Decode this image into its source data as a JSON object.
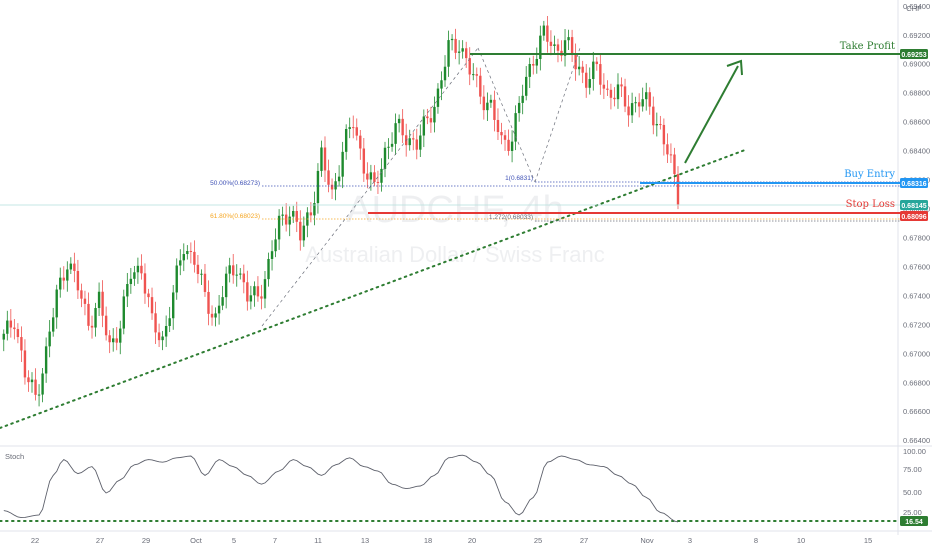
{
  "instrument": {
    "watermark": "AUDCHF, 4h",
    "description": "Australian Dollar / Swiss Franc",
    "currency": "CHF"
  },
  "colors": {
    "up": "#26a69a",
    "up_candle": "#1e8a2e",
    "down": "#ef5350",
    "take_profit": "#2e7d32",
    "buy_entry": "#2196f3",
    "stop_loss": "#e53935",
    "trendline": "#2e7d32",
    "fib_orange": "#f5a623",
    "fib_blue": "#3f51b5"
  },
  "annotations": {
    "take_profit": {
      "label": "Take Profit",
      "price": "0.69253"
    },
    "buy_entry": {
      "label": "Buy Entry",
      "price": "0.68316"
    },
    "stop_loss": {
      "label": "Stop Loss",
      "price": "0.68096"
    },
    "last_price": "0.68145",
    "fib_left_50": "50.00%(0.68273)",
    "fib_left_618": "61.80%(0.68023)",
    "fib_right_1": "1(0.6831)",
    "fib_right_1272": "1.272(0.68033)"
  },
  "stoch": {
    "label": "Stoch",
    "levels": [
      "100.00",
      "75.00",
      "50.00",
      "25.00"
    ],
    "current": "16.54"
  },
  "chart_data": {
    "type": "candlestick",
    "title": "",
    "xlabel": "",
    "ylabel": "",
    "ylim": [
      0.6636,
      0.6944
    ],
    "price_ticks": [
      "0.69400",
      "0.69200",
      "0.69000",
      "0.68800",
      "0.68600",
      "0.68400",
      "0.68200",
      "0.68000",
      "0.67800",
      "0.67600",
      "0.67400",
      "0.67200",
      "0.67000",
      "0.66800",
      "0.66600",
      "0.66400"
    ],
    "x_ticks": [
      "22",
      "27",
      "29",
      "Oct",
      "5",
      "7",
      "11",
      "13",
      "18",
      "20",
      "25",
      "27",
      "Nov",
      "3",
      "8",
      "10",
      "15"
    ],
    "levels": {
      "take_profit": 0.69253,
      "buy_entry": 0.68316,
      "stop_loss": 0.68096,
      "last": 0.68145
    },
    "close_path": [
      [
        0,
        0.671
      ],
      [
        3,
        0.6725
      ],
      [
        6,
        0.6685
      ],
      [
        9,
        0.667
      ],
      [
        12,
        0.67
      ],
      [
        15,
        0.674
      ],
      [
        18,
        0.6765
      ],
      [
        21,
        0.6745
      ],
      [
        24,
        0.6722
      ],
      [
        27,
        0.6735
      ],
      [
        30,
        0.6705
      ],
      [
        33,
        0.672
      ],
      [
        36,
        0.6755
      ],
      [
        39,
        0.676
      ],
      [
        42,
        0.672
      ],
      [
        45,
        0.671
      ],
      [
        48,
        0.674
      ],
      [
        51,
        0.6775
      ],
      [
        54,
        0.6765
      ],
      [
        57,
        0.6738
      ],
      [
        60,
        0.6725
      ],
      [
        63,
        0.675
      ],
      [
        66,
        0.6762
      ],
      [
        69,
        0.6738
      ],
      [
        72,
        0.674
      ],
      [
        75,
        0.676
      ],
      [
        78,
        0.679
      ],
      [
        81,
        0.68
      ],
      [
        84,
        0.678
      ],
      [
        87,
        0.68
      ],
      [
        90,
        0.6835
      ],
      [
        93,
        0.681
      ],
      [
        96,
        0.684
      ],
      [
        99,
        0.686
      ],
      [
        102,
        0.683
      ],
      [
        105,
        0.6812
      ],
      [
        108,
        0.684
      ],
      [
        111,
        0.6855
      ],
      [
        114,
        0.685
      ],
      [
        117,
        0.6845
      ],
      [
        120,
        0.686
      ],
      [
        123,
        0.688
      ],
      [
        126,
        0.691
      ],
      [
        129,
        0.6915
      ],
      [
        132,
        0.6895
      ],
      [
        135,
        0.688
      ],
      [
        138,
        0.687
      ],
      [
        141,
        0.6845
      ],
      [
        144,
        0.685
      ],
      [
        147,
        0.688
      ],
      [
        150,
        0.6905
      ],
      [
        153,
        0.692
      ],
      [
        156,
        0.691
      ],
      [
        159,
        0.6915
      ],
      [
        162,
        0.69
      ],
      [
        165,
        0.689
      ],
      [
        168,
        0.6895
      ],
      [
        171,
        0.688
      ],
      [
        174,
        0.688
      ],
      [
        177,
        0.687
      ],
      [
        180,
        0.6875
      ],
      [
        183,
        0.687
      ],
      [
        186,
        0.6855
      ],
      [
        189,
        0.683
      ],
      [
        191,
        0.681
      ]
    ],
    "stoch_path": [
      [
        0,
        30
      ],
      [
        5,
        22
      ],
      [
        10,
        25
      ],
      [
        14,
        70
      ],
      [
        17,
        88
      ],
      [
        21,
        72
      ],
      [
        25,
        80
      ],
      [
        29,
        50
      ],
      [
        33,
        65
      ],
      [
        37,
        82
      ],
      [
        41,
        88
      ],
      [
        45,
        85
      ],
      [
        49,
        90
      ],
      [
        53,
        92
      ],
      [
        57,
        70
      ],
      [
        61,
        88
      ],
      [
        65,
        80
      ],
      [
        69,
        70
      ],
      [
        73,
        60
      ],
      [
        78,
        75
      ],
      [
        82,
        88
      ],
      [
        86,
        80
      ],
      [
        90,
        70
      ],
      [
        94,
        82
      ],
      [
        98,
        90
      ],
      [
        102,
        80
      ],
      [
        106,
        75
      ],
      [
        110,
        60
      ],
      [
        114,
        55
      ],
      [
        118,
        58
      ],
      [
        122,
        70
      ],
      [
        126,
        90
      ],
      [
        130,
        93
      ],
      [
        134,
        85
      ],
      [
        138,
        70
      ],
      [
        142,
        40
      ],
      [
        146,
        25
      ],
      [
        150,
        45
      ],
      [
        154,
        85
      ],
      [
        158,
        92
      ],
      [
        162,
        88
      ],
      [
        166,
        82
      ],
      [
        170,
        80
      ],
      [
        174,
        70
      ],
      [
        178,
        60
      ],
      [
        182,
        45
      ],
      [
        186,
        28
      ],
      [
        191,
        17
      ]
    ],
    "legend": "none",
    "grid": false
  }
}
